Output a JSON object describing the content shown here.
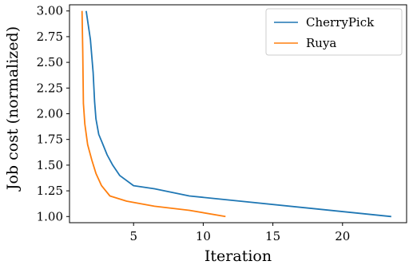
{
  "chart_data": {
    "type": "line",
    "xlabel": "Iteration",
    "ylabel": "Job cost (normalized)",
    "xlim": [
      0.4,
      24.6
    ],
    "ylim": [
      0.94,
      3.06
    ],
    "xticks": [
      5,
      10,
      15,
      20
    ],
    "yticks": [
      1.0,
      1.25,
      1.5,
      1.75,
      2.0,
      2.25,
      2.5,
      2.75,
      3.0
    ],
    "xtick_labels": [
      "5",
      "10",
      "15",
      "20"
    ],
    "ytick_labels": [
      "1.00",
      "1.25",
      "1.50",
      "1.75",
      "2.00",
      "2.25",
      "2.50",
      "2.75",
      "3.00"
    ],
    "grid": false,
    "legend_position": "top-right",
    "series": [
      {
        "name": "CherryPick",
        "color": "#1f77b4",
        "x": [
          1.6,
          1.9,
          2.1,
          2.2,
          2.3,
          2.5,
          2.8,
          3.1,
          3.5,
          4.0,
          5.0,
          6.5,
          9.0,
          23.5
        ],
        "y": [
          3.0,
          2.72,
          2.4,
          2.12,
          1.95,
          1.8,
          1.7,
          1.6,
          1.5,
          1.4,
          1.3,
          1.27,
          1.2,
          1.0
        ]
      },
      {
        "name": "Ruya",
        "color": "#ff7f0e",
        "x": [
          1.3,
          1.35,
          1.4,
          1.5,
          1.7,
          2.0,
          2.3,
          2.7,
          3.3,
          4.5,
          6.5,
          9.0,
          11.6
        ],
        "y": [
          3.0,
          2.6,
          2.1,
          1.9,
          1.7,
          1.55,
          1.42,
          1.3,
          1.2,
          1.15,
          1.1,
          1.06,
          1.0
        ]
      }
    ]
  }
}
